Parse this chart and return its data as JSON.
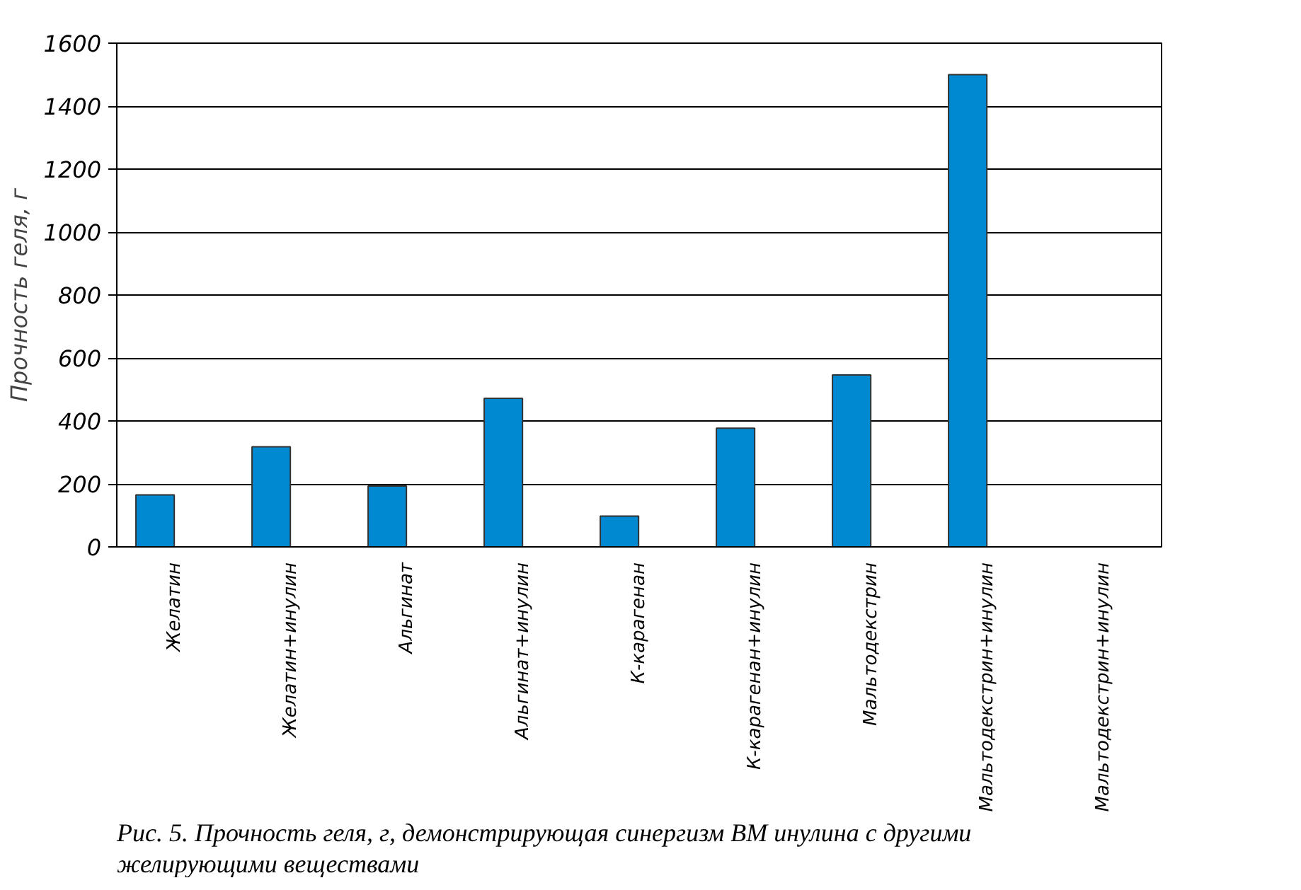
{
  "chart_data": {
    "type": "bar",
    "ylabel": "Прочность геля, г",
    "categories": [
      "Желатин",
      "Желатин+инулин",
      "Альгинат",
      "Альгинат+инулин",
      "К-карагенан",
      "К-карагенан+инулин",
      "Мальтодекстрин",
      "Мальтодекстрин+инулин",
      "Мальтодекстрин+инулин"
    ],
    "values": [
      165,
      318,
      193,
      472,
      98,
      377,
      546,
      1500,
      null
    ],
    "color": "#0088d1",
    "ylim": [
      0,
      1600
    ],
    "yticks": [
      0,
      200,
      400,
      600,
      800,
      1000,
      1200,
      1400,
      1600
    ],
    "grid": "y",
    "annotations": [
      "Рис. 5. Прочность геля, г, демонстрирующая синергизм ВМ инулина с  другими желирующими веществами"
    ]
  }
}
